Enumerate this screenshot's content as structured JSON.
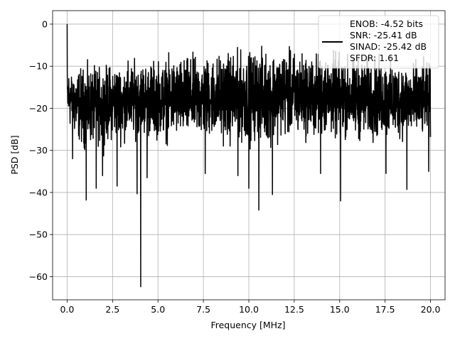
{
  "chart_data": {
    "type": "line",
    "title": "",
    "xlabel": "Frequency [MHz]",
    "ylabel": "PSD [dB]",
    "xlim": [
      -0.8,
      20.8
    ],
    "ylim": [
      -65.5,
      3.2
    ],
    "x_ticks": [
      0.0,
      2.5,
      5.0,
      7.5,
      10.0,
      12.5,
      15.0,
      17.5,
      20.0
    ],
    "x_tick_labels": [
      "0.0",
      "2.5",
      "5.0",
      "7.5",
      "10.0",
      "12.5",
      "15.0",
      "17.5",
      "20.0"
    ],
    "y_ticks": [
      0,
      -10,
      -20,
      -30,
      -40,
      -50,
      -60
    ],
    "y_tick_labels": [
      "0",
      "−10",
      "−20",
      "−30",
      "−40",
      "−50",
      "−60"
    ],
    "grid": true,
    "legend_position": "top-right",
    "legend_lines": [
      "ENOB: -4.52 bits",
      "SNR: -25.41 dB",
      "SINAD: -25.42 dB",
      "SFDR: 1.61"
    ],
    "series": [
      {
        "color": "#000000",
        "envelope": {
          "x": [
            0,
            0.5,
            1,
            1.5,
            2,
            2.5,
            3,
            3.5,
            4,
            4.5,
            5,
            5.5,
            6,
            6.5,
            7,
            7.5,
            8,
            8.5,
            9,
            9.5,
            10,
            10.5,
            11,
            11.5,
            12,
            12.5,
            13,
            13.5,
            14,
            14.5,
            15,
            15.5,
            16,
            16.5,
            17,
            17.5,
            18,
            18.5,
            19,
            19.5,
            20
          ],
          "upper": [
            -8,
            -7.5,
            -7,
            -7.5,
            -7,
            -6.5,
            -6.5,
            -6,
            -6,
            -6,
            -5.5,
            -5,
            -5,
            -5,
            -4.5,
            -4.5,
            -4.5,
            -3.5,
            -3,
            -3.5,
            -3,
            -3,
            -2.5,
            -2.5,
            -3,
            -3,
            -3.5,
            -4,
            -3.5,
            -3.5,
            -4,
            -4.5,
            -4.5,
            -5,
            -5,
            -5.5,
            -5.5,
            -6,
            -6,
            -6,
            -6.5
          ],
          "lower": [
            -26,
            -30,
            -33,
            -31,
            -32,
            -30,
            -31,
            -30,
            -29,
            -30,
            -30,
            -31,
            -30,
            -31,
            -30,
            -31,
            -30,
            -31,
            -32,
            -31,
            -32,
            -31,
            -32,
            -31,
            -30,
            -31,
            -30,
            -31,
            -30,
            -30,
            -31,
            -30,
            -31,
            -30,
            -31,
            -30,
            -31,
            -30,
            -31,
            -30,
            -30
          ]
        },
        "spikes": [
          {
            "x": 0.0,
            "y": 0.0
          },
          {
            "x": 0.3,
            "y": -32
          },
          {
            "x": 1.05,
            "y": -41.8
          },
          {
            "x": 1.6,
            "y": -39
          },
          {
            "x": 1.95,
            "y": -36
          },
          {
            "x": 2.75,
            "y": -38.5
          },
          {
            "x": 3.85,
            "y": -40.3
          },
          {
            "x": 4.05,
            "y": -62.4
          },
          {
            "x": 4.4,
            "y": -36.5
          },
          {
            "x": 7.6,
            "y": -35.5
          },
          {
            "x": 9.4,
            "y": -36
          },
          {
            "x": 10.0,
            "y": -39
          },
          {
            "x": 10.55,
            "y": -44.2
          },
          {
            "x": 11.3,
            "y": -40.5
          },
          {
            "x": 13.95,
            "y": -35.5
          },
          {
            "x": 15.05,
            "y": -42
          },
          {
            "x": 17.55,
            "y": -35.5
          },
          {
            "x": 18.7,
            "y": -39.3
          },
          {
            "x": 19.9,
            "y": -35
          }
        ]
      }
    ]
  }
}
